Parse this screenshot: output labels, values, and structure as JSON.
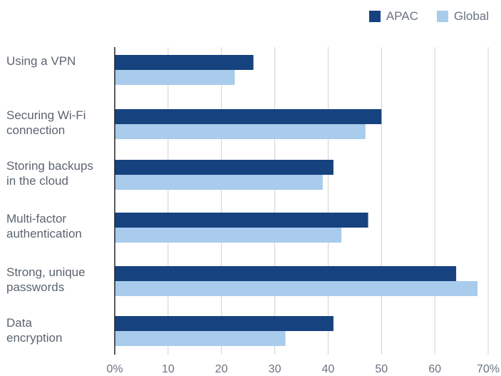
{
  "legend": {
    "series1": "APAC",
    "series2": "Global"
  },
  "colors": {
    "APAC": "#16427f",
    "Global": "#a9cbec",
    "grid": "#d0d0d0",
    "axis": "#222222"
  },
  "chart_data": {
    "type": "bar",
    "orientation": "horizontal",
    "categories": [
      "Using a VPN",
      "Securing Wi-Fi connection",
      "Storing backups in the cloud",
      "Multi-factor authentication",
      "Strong, unique passwords",
      "Data encryption"
    ],
    "category_lines": [
      [
        "Using a VPN"
      ],
      [
        "Securing Wi-Fi",
        "connection"
      ],
      [
        "Storing backups",
        "in the cloud"
      ],
      [
        "Multi-factor",
        "authentication"
      ],
      [
        "Strong, unique",
        "passwords"
      ],
      [
        "Data",
        "encryption"
      ]
    ],
    "series": [
      {
        "name": "APAC",
        "values": [
          26,
          50,
          41,
          47.5,
          64,
          41
        ]
      },
      {
        "name": "Global",
        "values": [
          22.5,
          47,
          39,
          42.5,
          68,
          32
        ]
      }
    ],
    "xlim": [
      0,
      70
    ],
    "ticks": [
      "0%",
      "10",
      "20",
      "30",
      "40",
      "50",
      "60",
      "70%"
    ],
    "grid": true,
    "legend_position": "top-right"
  }
}
